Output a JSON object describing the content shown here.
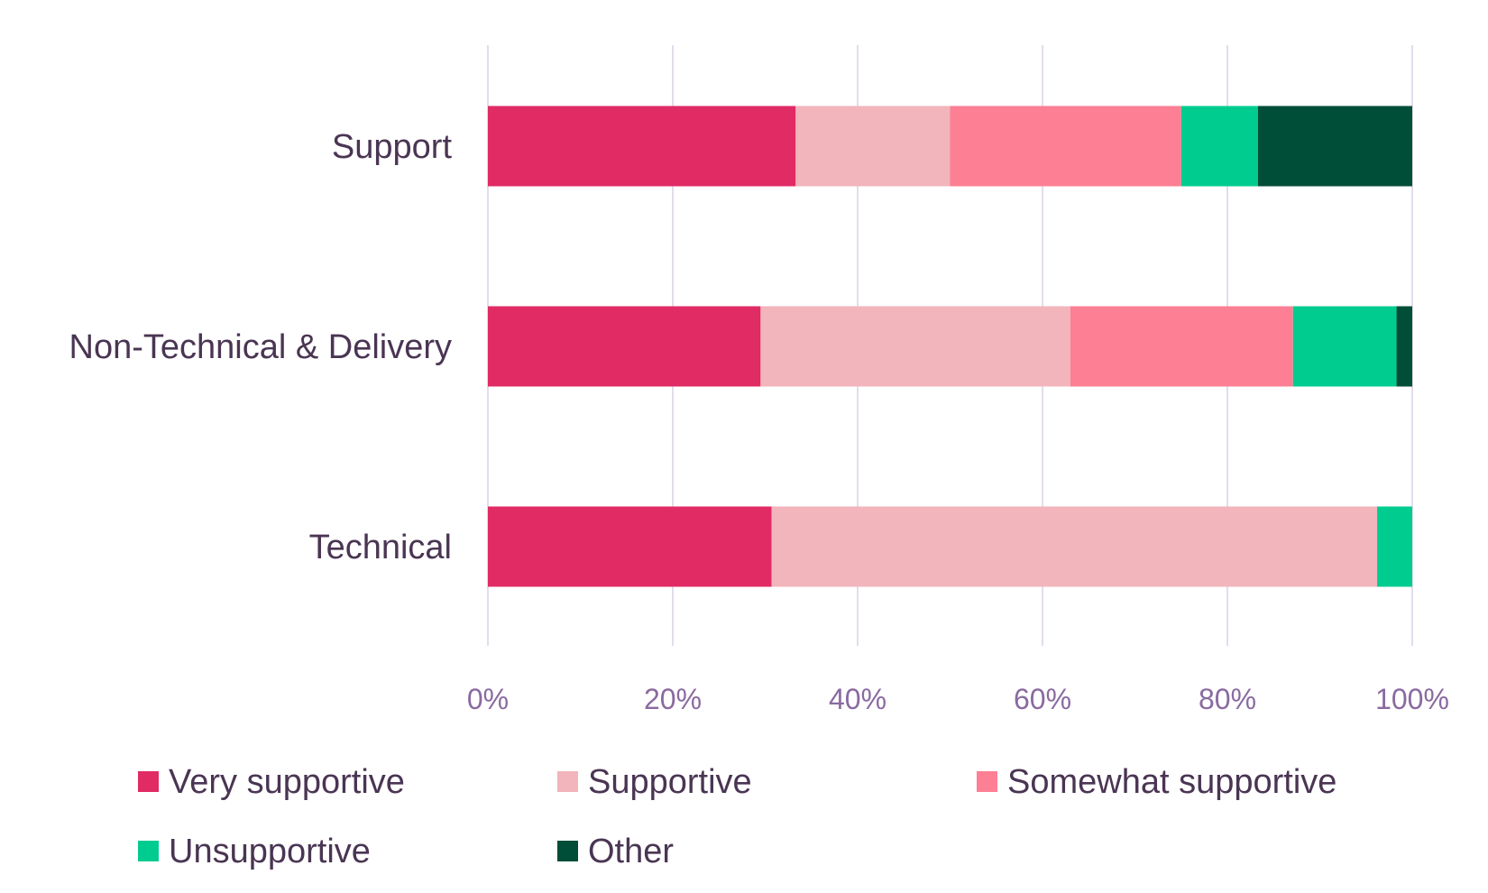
{
  "chart_data": {
    "type": "bar",
    "orientation": "horizontal",
    "stacked": true,
    "categories": [
      "Support",
      "Non-Technical & Delivery",
      "Technical"
    ],
    "series": [
      {
        "name": "Very supportive",
        "color": "#e02b65",
        "values": [
          33.3,
          29.5,
          30.7
        ]
      },
      {
        "name": "Supportive",
        "color": "#f1b5bb",
        "values": [
          16.7,
          33.5,
          65.5
        ]
      },
      {
        "name": "Somewhat supportive",
        "color": "#fd7f93",
        "values": [
          25.0,
          24.1,
          0
        ]
      },
      {
        "name": "Unsupportive",
        "color": "#00cc8f",
        "values": [
          8.3,
          11.2,
          3.8
        ]
      },
      {
        "name": "Other",
        "color": "#004d38",
        "values": [
          16.7,
          1.7,
          0
        ]
      }
    ],
    "x_ticks": [
      "0%",
      "20%",
      "40%",
      "60%",
      "80%",
      "100%"
    ],
    "xlim": [
      0,
      100
    ],
    "grid": true,
    "legend_position": "bottom",
    "title": "",
    "xlabel": "",
    "ylabel": ""
  }
}
